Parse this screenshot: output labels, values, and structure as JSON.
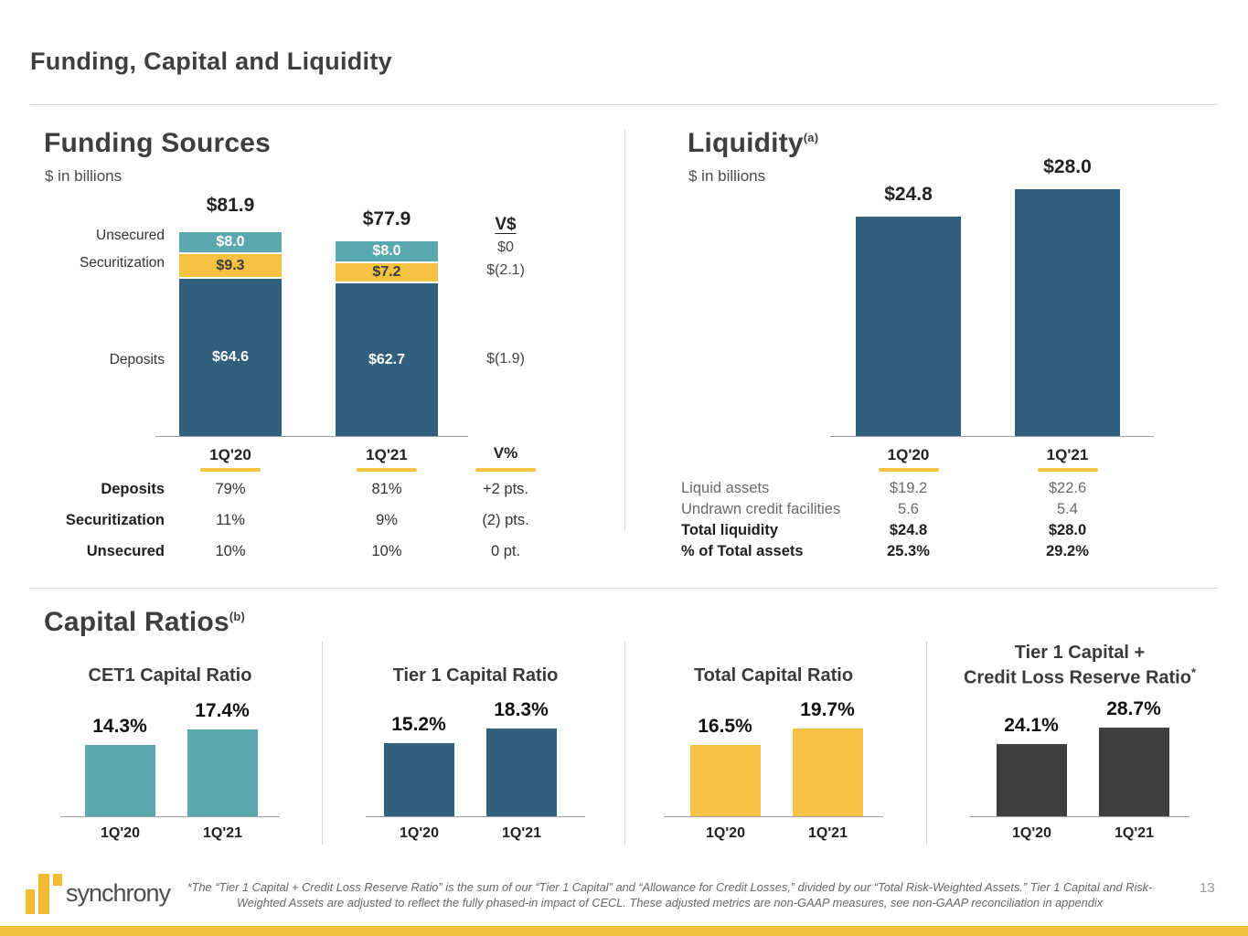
{
  "slide": {
    "title": "Funding, Capital and Liquidity",
    "page_number": "13",
    "logo_text": "synchrony",
    "footnote_line1": "*The “Tier 1 Capital + Credit Loss Reserve Ratio” is the sum of our “Tier 1 Capital” and “Allowance for Credit Losses,” divided by our “Total Risk-Weighted Assets.” Tier 1 Capital and Risk-",
    "footnote_line2": "Weighted Assets are adjusted to reflect the fully phased-in impact of CECL. These adjusted metrics are non-GAAP measures, see non-GAAP reconciliation in appendix"
  },
  "colors": {
    "deposits_blue": "#30607E",
    "unsecured_teal": "#5AA8AF",
    "securitization_gold": "#F5C242",
    "dark_gray_bar": "#3F3F3F",
    "accent_gold": "#F2C13C"
  },
  "chart_data": [
    {
      "id": "funding_sources",
      "type": "bar",
      "stacked": true,
      "title": "Funding Sources",
      "subtitle": "$ in billions",
      "categories": [
        "1Q'20",
        "1Q'21"
      ],
      "totals": [
        "$81.9",
        "$77.9"
      ],
      "series": [
        {
          "name": "Unsecured",
          "values": [
            8.0,
            8.0
          ],
          "labels": [
            "$8.0",
            "$8.0"
          ],
          "color": "#5AA8AF"
        },
        {
          "name": "Securitization",
          "values": [
            9.3,
            7.2
          ],
          "labels": [
            "$9.3",
            "$7.2"
          ],
          "color": "#F5C242"
        },
        {
          "name": "Deposits",
          "values": [
            64.6,
            62.7
          ],
          "labels": [
            "$64.6",
            "$62.7"
          ],
          "color": "#30607E"
        }
      ],
      "variance_header": "V$",
      "variances": [
        "$0",
        "$(2.1)",
        "$(1.9)"
      ],
      "mix_table": {
        "headers": [
          "1Q'20",
          "1Q'21",
          "V%"
        ],
        "rows": [
          {
            "label": "Deposits",
            "q20": "79%",
            "q21": "81%",
            "v": "+2 pts."
          },
          {
            "label": "Securitization",
            "q20": "11%",
            "q21": "9%",
            "v": "(2) pts."
          },
          {
            "label": "Unsecured",
            "q20": "10%",
            "q21": "10%",
            "v": "0 pt."
          }
        ]
      }
    },
    {
      "id": "liquidity",
      "type": "bar",
      "title": "Liquidity",
      "title_superscript": "(a)",
      "subtitle": "$ in billions",
      "categories": [
        "1Q'20",
        "1Q'21"
      ],
      "values": [
        24.8,
        28.0
      ],
      "value_labels": [
        "$24.8",
        "$28.0"
      ],
      "bar_color": "#30607E",
      "table": {
        "rows": [
          {
            "label": "Liquid assets",
            "q20": "$19.2",
            "q21": "$22.6"
          },
          {
            "label": "Undrawn credit facilities",
            "q20": "5.6",
            "q21": "5.4"
          },
          {
            "label": "Total liquidity",
            "q20": "$24.8",
            "q21": "$28.0"
          },
          {
            "label": "% of Total assets",
            "q20": "25.3%",
            "q21": "29.2%"
          }
        ]
      }
    },
    {
      "id": "capital_ratios",
      "type": "bar",
      "section_title": "Capital Ratios",
      "section_superscript": "(b)",
      "categories": [
        "1Q'20",
        "1Q'21"
      ],
      "charts": [
        {
          "title": "CET1 Capital Ratio",
          "values": [
            14.3,
            17.4
          ],
          "labels": [
            "14.3%",
            "17.4%"
          ],
          "color": "#5AA8AF"
        },
        {
          "title": "Tier 1 Capital Ratio",
          "values": [
            15.2,
            18.3
          ],
          "labels": [
            "15.2%",
            "18.3%"
          ],
          "color": "#30607E"
        },
        {
          "title": "Total Capital Ratio",
          "values": [
            16.5,
            19.7
          ],
          "labels": [
            "16.5%",
            "19.7%"
          ],
          "color": "#F5C242"
        },
        {
          "title_line1": "Tier 1 Capital +",
          "title_line2": "Credit Loss Reserve Ratio",
          "title_superscript": "*",
          "values": [
            24.1,
            28.7
          ],
          "labels": [
            "24.1%",
            "28.7%"
          ],
          "color": "#3F3F3F"
        }
      ]
    }
  ]
}
